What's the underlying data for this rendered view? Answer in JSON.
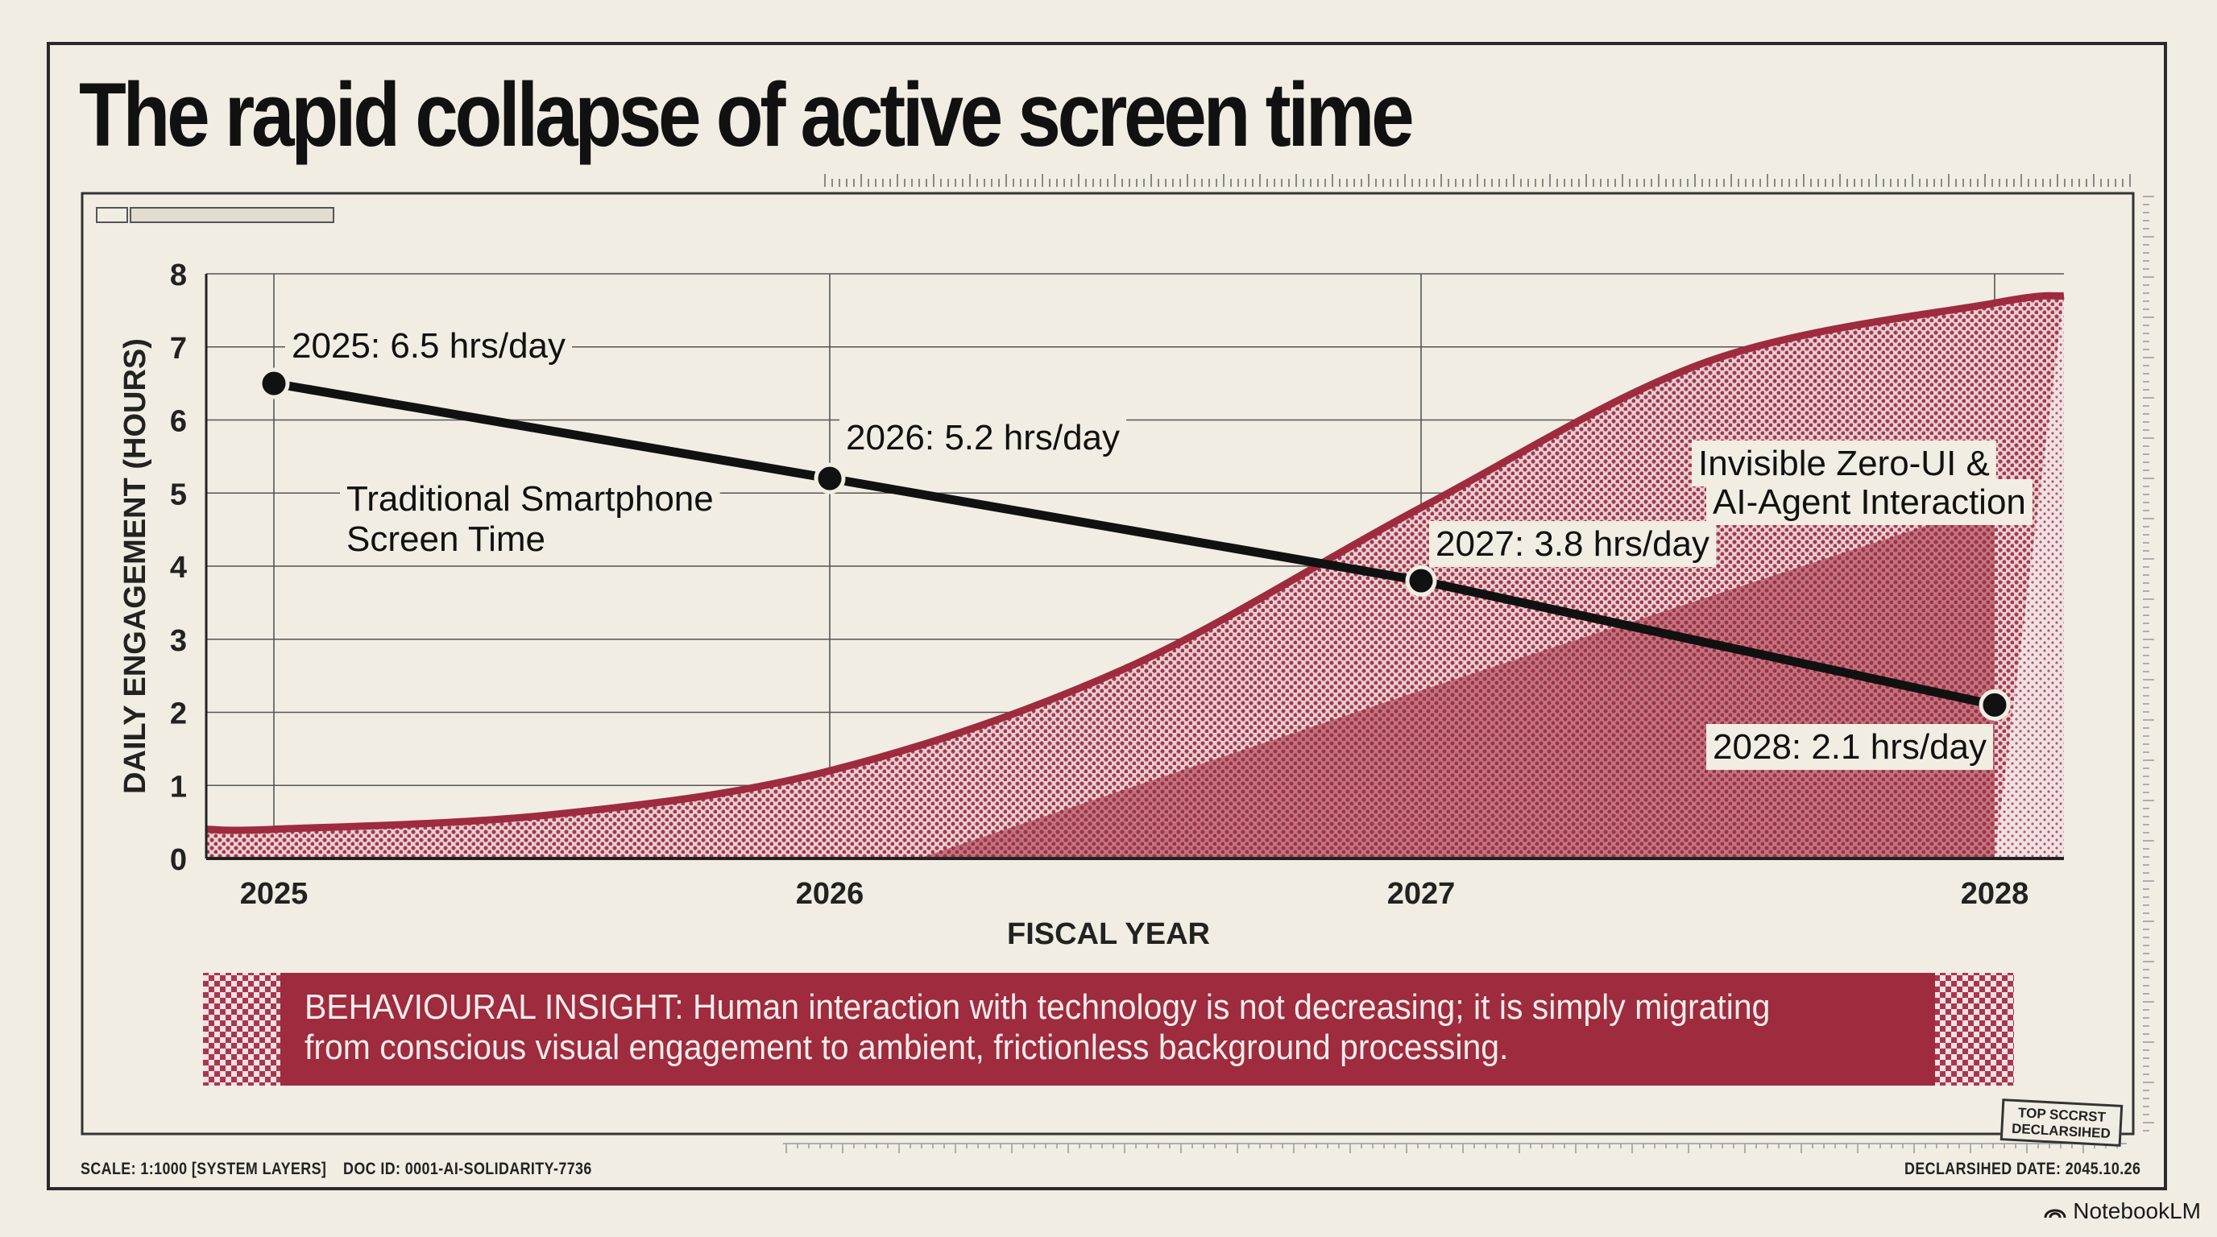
{
  "title": "The rapid collapse of active screen time",
  "chart_data": {
    "type": "line",
    "xlabel": "FISCAL YEAR",
    "ylabel": "DAILY ENGAGEMENT (HOURS)",
    "categories": [
      "2025",
      "2026",
      "2027",
      "2028"
    ],
    "x": [
      2025,
      2026,
      2027,
      2028
    ],
    "ylim": [
      0,
      8
    ],
    "yticks": [
      0,
      1,
      2,
      3,
      4,
      5,
      6,
      7,
      8
    ],
    "grid": true,
    "series": [
      {
        "name": "Traditional Smartphone Screen Time",
        "type": "line",
        "x": [
          2025,
          2026,
          2027,
          2028
        ],
        "values": [
          6.5,
          5.2,
          3.8,
          2.1
        ],
        "point_labels": [
          "2025: 6.5 hrs/day",
          "2026: 5.2 hrs/day",
          "2027: 3.8 hrs/day",
          "2028: 2.1 hrs/day"
        ],
        "color": "#111111"
      },
      {
        "name": "Invisible Zero-UI & AI-Agent Interaction",
        "type": "area",
        "x": [
          2025,
          2025.5,
          2026,
          2026.5,
          2027,
          2027.5,
          2028,
          2028.1
        ],
        "values": [
          0.4,
          0.6,
          1.2,
          2.6,
          4.8,
          6.8,
          7.6,
          7.7
        ],
        "color": "#9e2b3e"
      }
    ],
    "annotations": {
      "line_label_1": "Traditional Smartphone",
      "line_label_2": "Screen Time",
      "area_label_1": "Invisible Zero-UI &",
      "area_label_2": "AI-Agent Interaction"
    }
  },
  "insight": "BEHAVIOURAL INSIGHT: Human interaction with technology is not decreasing; it is simply migrating from conscious visual engagement to ambient, frictionless background processing.",
  "footer": {
    "scale": "SCALE: 1:1000 [SYSTEM LAYERS]",
    "doc_id": "DOC ID: 0001-AI-SOLIDARITY-7736",
    "declassified": "DECLARSIHED DATE: 2045.10.26"
  },
  "stamp": "TOP SCCRST DECLARSIHED",
  "brand": "NotebookLM",
  "colors": {
    "background": "#f1ede3",
    "accent": "#9e2b3e",
    "line": "#111111"
  }
}
